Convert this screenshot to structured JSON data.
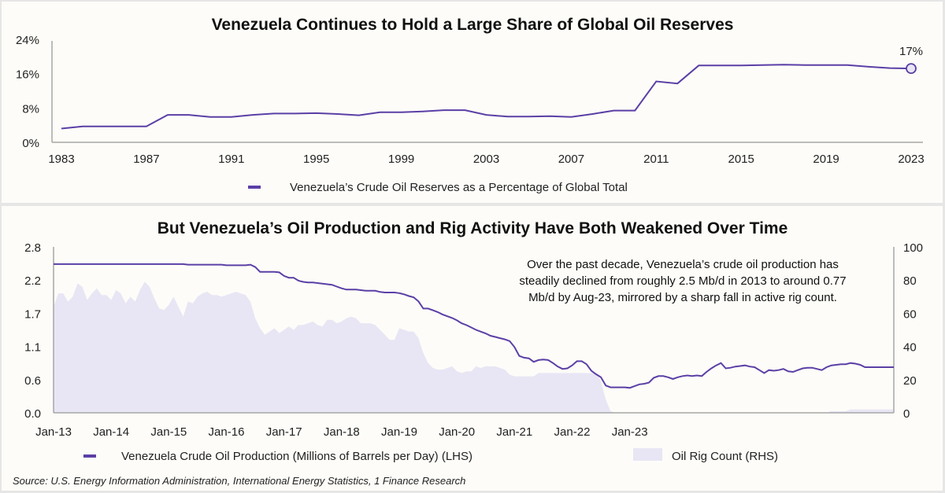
{
  "colors": {
    "line": "#5b3fa6",
    "area": "#e8e6f4",
    "marker_fill": "#e8e6f4",
    "axis": "#a6a6a6",
    "background": "#fdfcf8"
  },
  "chart_data": [
    {
      "type": "line",
      "title": "Venezuela Continues to Hold a Large Share of Global Oil Reserves",
      "xlabel": "",
      "ylabel": "",
      "ylim": [
        0,
        24
      ],
      "yticks": [
        "0%",
        "8%",
        "16%",
        "24%"
      ],
      "ytick_values": [
        0,
        8,
        16,
        24
      ],
      "xticks": [
        "1983",
        "1987",
        "1991",
        "1995",
        "1999",
        "2003",
        "2007",
        "2011",
        "2015",
        "2019",
        "2023"
      ],
      "grid": false,
      "legend_position": "bottom",
      "series": [
        {
          "name": "Venezuela’s Crude Oil Reserves as a Percentage of Global Total",
          "x": [
            1983,
            1984,
            1985,
            1986,
            1987,
            1988,
            1989,
            1990,
            1991,
            1992,
            1993,
            1994,
            1995,
            1996,
            1997,
            1998,
            1999,
            2000,
            2001,
            2002,
            2003,
            2004,
            2005,
            2006,
            2007,
            2008,
            2009,
            2010,
            2011,
            2012,
            2013,
            2014,
            2015,
            2016,
            2017,
            2018,
            2019,
            2020,
            2021,
            2022,
            2023
          ],
          "values": [
            3.2,
            3.7,
            3.7,
            3.7,
            3.7,
            6.4,
            6.4,
            5.9,
            5.9,
            6.4,
            6.7,
            6.7,
            6.8,
            6.6,
            6.3,
            7.0,
            7.0,
            7.2,
            7.5,
            7.5,
            6.4,
            6.0,
            6.0,
            6.1,
            5.9,
            6.6,
            7.4,
            7.4,
            14.2,
            13.7,
            17.9,
            17.9,
            17.9,
            18.0,
            18.1,
            18.0,
            18.0,
            18.0,
            17.6,
            17.3,
            17.2
          ]
        }
      ],
      "annotations": [
        {
          "x": 2023,
          "label": "17%"
        }
      ]
    },
    {
      "type": "line",
      "title": "But Venezuela’s Oil Production and Rig Activity Have Both Weakened Over Time",
      "xlabel": "",
      "ylabel_left": "",
      "ylabel_right": "",
      "ylim_left": [
        0,
        2.8
      ],
      "ylim_right": [
        0,
        100
      ],
      "yticks_left": [
        "0.0",
        "0.6",
        "1.1",
        "1.7",
        "2.2",
        "2.8"
      ],
      "ytick_values_left": [
        0,
        0.56,
        1.12,
        1.68,
        2.24,
        2.8
      ],
      "yticks_right": [
        "0",
        "20",
        "40",
        "60",
        "80",
        "100"
      ],
      "ytick_values_right": [
        0,
        20,
        40,
        60,
        80,
        100
      ],
      "xticks": [
        "Jan-13",
        "Jan-14",
        "Jan-15",
        "Jan-16",
        "Jan-17",
        "Jan-18",
        "Jan-19",
        "Jan-20",
        "Jan-21",
        "Jan-22",
        "Jan-23"
      ],
      "x_start": "Jan-13",
      "x_end": "Aug-23",
      "grid": false,
      "legend_position": "bottom",
      "annotation": "Over the past decade, Venezuela’s crude oil production has steadily declined from roughly 2.5 Mb/d in 2013 to around 0.77 Mb/d by Aug-23, mirrored by a sharp fall in active rig count.",
      "annotation_lines": [
        "Over the past decade, Venezuela’s crude oil production has",
        "steadily declined from roughly 2.5 Mb/d in 2013 to around 0.77",
        "Mb/d by Aug-23, mirrored by a sharp fall in active rig count."
      ],
      "series": [
        {
          "name": "Venezuela Crude Oil Production (Millions of Barrels per Day) (LHS)",
          "kind": "line",
          "axis": "left",
          "values": [
            2.51,
            2.51,
            2.51,
            2.51,
            2.51,
            2.51,
            2.51,
            2.51,
            2.51,
            2.51,
            2.51,
            2.51,
            2.51,
            2.51,
            2.51,
            2.51,
            2.51,
            2.51,
            2.51,
            2.51,
            2.51,
            2.51,
            2.51,
            2.51,
            2.51,
            2.51,
            2.51,
            2.51,
            2.5,
            2.5,
            2.5,
            2.5,
            2.5,
            2.5,
            2.5,
            2.5,
            2.49,
            2.49,
            2.49,
            2.49,
            2.49,
            2.5,
            2.46,
            2.38,
            2.38,
            2.38,
            2.38,
            2.37,
            2.31,
            2.28,
            2.28,
            2.23,
            2.21,
            2.2,
            2.2,
            2.19,
            2.18,
            2.17,
            2.16,
            2.13,
            2.1,
            2.08,
            2.08,
            2.08,
            2.07,
            2.06,
            2.06,
            2.06,
            2.04,
            2.03,
            2.03,
            2.03,
            2.02,
            2.0,
            1.97,
            1.95,
            1.88,
            1.76,
            1.76,
            1.73,
            1.7,
            1.66,
            1.63,
            1.6,
            1.56,
            1.51,
            1.48,
            1.44,
            1.4,
            1.37,
            1.34,
            1.3,
            1.28,
            1.26,
            1.24,
            1.21,
            1.11,
            0.96,
            0.93,
            0.92,
            0.86,
            0.89,
            0.9,
            0.89,
            0.84,
            0.78,
            0.74,
            0.75,
            0.8,
            0.87,
            0.87,
            0.82,
            0.71,
            0.65,
            0.6,
            0.46,
            0.43,
            0.43,
            0.43,
            0.43,
            0.42,
            0.45,
            0.48,
            0.49,
            0.51,
            0.59,
            0.62,
            0.62,
            0.6,
            0.57,
            0.6,
            0.62,
            0.63,
            0.62,
            0.63,
            0.62,
            0.69,
            0.75,
            0.8,
            0.84,
            0.75,
            0.76,
            0.78,
            0.79,
            0.8,
            0.78,
            0.77,
            0.72,
            0.67,
            0.72,
            0.71,
            0.72,
            0.74,
            0.7,
            0.69,
            0.72,
            0.75,
            0.76,
            0.76,
            0.74,
            0.72,
            0.77,
            0.8,
            0.81,
            0.82,
            0.82,
            0.84,
            0.83,
            0.81,
            0.77,
            0.77,
            0.77,
            0.77,
            0.77,
            0.77,
            0.77
          ]
        },
        {
          "name": "Oil Rig Count (RHS)",
          "kind": "area",
          "axis": "right",
          "values": [
            64,
            72,
            72,
            67,
            70,
            78,
            76,
            68,
            72,
            75,
            71,
            71,
            68,
            74,
            72,
            66,
            70,
            67,
            74,
            79,
            76,
            69,
            63,
            62,
            65,
            70,
            64,
            58,
            67,
            66,
            70,
            72,
            73,
            71,
            71,
            70,
            71,
            72,
            73,
            72,
            71,
            67,
            57,
            51,
            47,
            49,
            51,
            48,
            50,
            52,
            50,
            53,
            53,
            54,
            55,
            53,
            52,
            56,
            56,
            54,
            55,
            57,
            58,
            57,
            54,
            54,
            54,
            53,
            50,
            47,
            44,
            44,
            51,
            50,
            49,
            49,
            45,
            36,
            30,
            27,
            26,
            26,
            27,
            28,
            25,
            24,
            25,
            25,
            28,
            27,
            28,
            28,
            28,
            27,
            26,
            23,
            22,
            22,
            22,
            22,
            22,
            24,
            24,
            24,
            24,
            24,
            24,
            24,
            24,
            24,
            24,
            24,
            24,
            24,
            19,
            8,
            1,
            0,
            0,
            0,
            0,
            0,
            0,
            0,
            0,
            0,
            0,
            0,
            0,
            0,
            0,
            0,
            0,
            0,
            0,
            0,
            0,
            0,
            0,
            0,
            0,
            0,
            0,
            0,
            0,
            0,
            0,
            0,
            0,
            0,
            0,
            0,
            0,
            0,
            0,
            0,
            0,
            0,
            0,
            0,
            0,
            0,
            1,
            1,
            1,
            1,
            2,
            2,
            2,
            2,
            2,
            2,
            2,
            2,
            2,
            2
          ]
        }
      ]
    }
  ],
  "source": "Source: U.S. Energy Information Administration, International Energy Statistics, 1 Finance Research"
}
